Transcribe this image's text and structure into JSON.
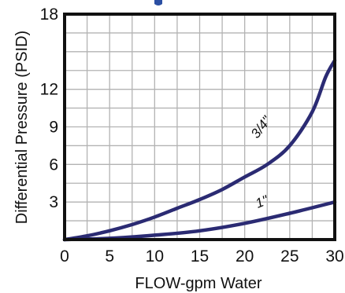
{
  "chart_data": {
    "type": "line",
    "title": "",
    "xlabel": "FLOW-gpm Water",
    "ylabel": "Differential Pressure (PSID)",
    "xlim": [
      0,
      30
    ],
    "ylim": [
      0,
      18
    ],
    "xticks": [
      "0",
      "5",
      "10",
      "15",
      "20",
      "25",
      "30"
    ],
    "yticks": [
      "3",
      "6",
      "9",
      "12",
      "18"
    ],
    "grid": true,
    "colors": {
      "line": "#2b2b73",
      "frame": "#111111",
      "grid": "#b3b3b3"
    },
    "series": [
      {
        "name": "3/4\"",
        "x": [
          0,
          2.5,
          5,
          7.5,
          10,
          12.5,
          15,
          17.5,
          20,
          22.5,
          25,
          27.5,
          29,
          30
        ],
        "y": [
          0,
          0.3,
          0.7,
          1.2,
          1.8,
          2.5,
          3.2,
          4.0,
          5.0,
          6.0,
          7.5,
          10.2,
          13.0,
          14.3
        ]
      },
      {
        "name": "1\"",
        "x": [
          0,
          5,
          10,
          15,
          20,
          25,
          30
        ],
        "y": [
          0,
          0.1,
          0.35,
          0.7,
          1.3,
          2.1,
          3.0
        ]
      }
    ]
  }
}
